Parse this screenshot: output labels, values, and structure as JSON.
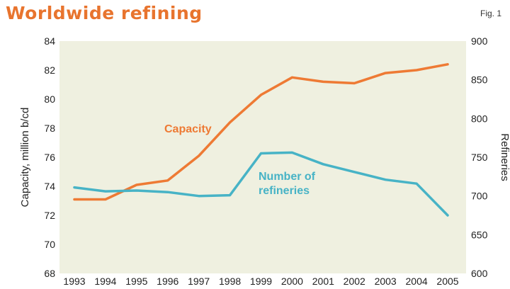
{
  "title": "Worldwide refining",
  "fig_label": "Fig. 1",
  "chart_data": {
    "type": "line",
    "categories": [
      "1993",
      "1994",
      "1995",
      "1996",
      "1997",
      "1998",
      "1999",
      "2000",
      "2001",
      "2002",
      "2003",
      "2004",
      "2005"
    ],
    "series": [
      {
        "name": "Capacity",
        "axis": "left",
        "color": "#ee7a34",
        "values": [
          73.1,
          73.1,
          74.1,
          74.4,
          76.1,
          78.4,
          80.3,
          81.5,
          81.2,
          81.1,
          81.8,
          82.0,
          82.4
        ]
      },
      {
        "name": "Number of refineries",
        "axis": "right",
        "color": "#47b3c6",
        "values": [
          711,
          706,
          707,
          705,
          700,
          701,
          755,
          756,
          741,
          731,
          721,
          716,
          675
        ]
      }
    ],
    "ylabel_left": "Capacity, million b/cd",
    "ylim_left": [
      68,
      84
    ],
    "yticks_left": [
      68,
      70,
      72,
      74,
      76,
      78,
      80,
      82,
      84
    ],
    "ylabel_right": "Refineries",
    "ylim_right": [
      600,
      900
    ],
    "yticks_right": [
      600,
      650,
      700,
      750,
      800,
      850,
      900
    ],
    "background": "#eff0e0",
    "grid": false
  }
}
